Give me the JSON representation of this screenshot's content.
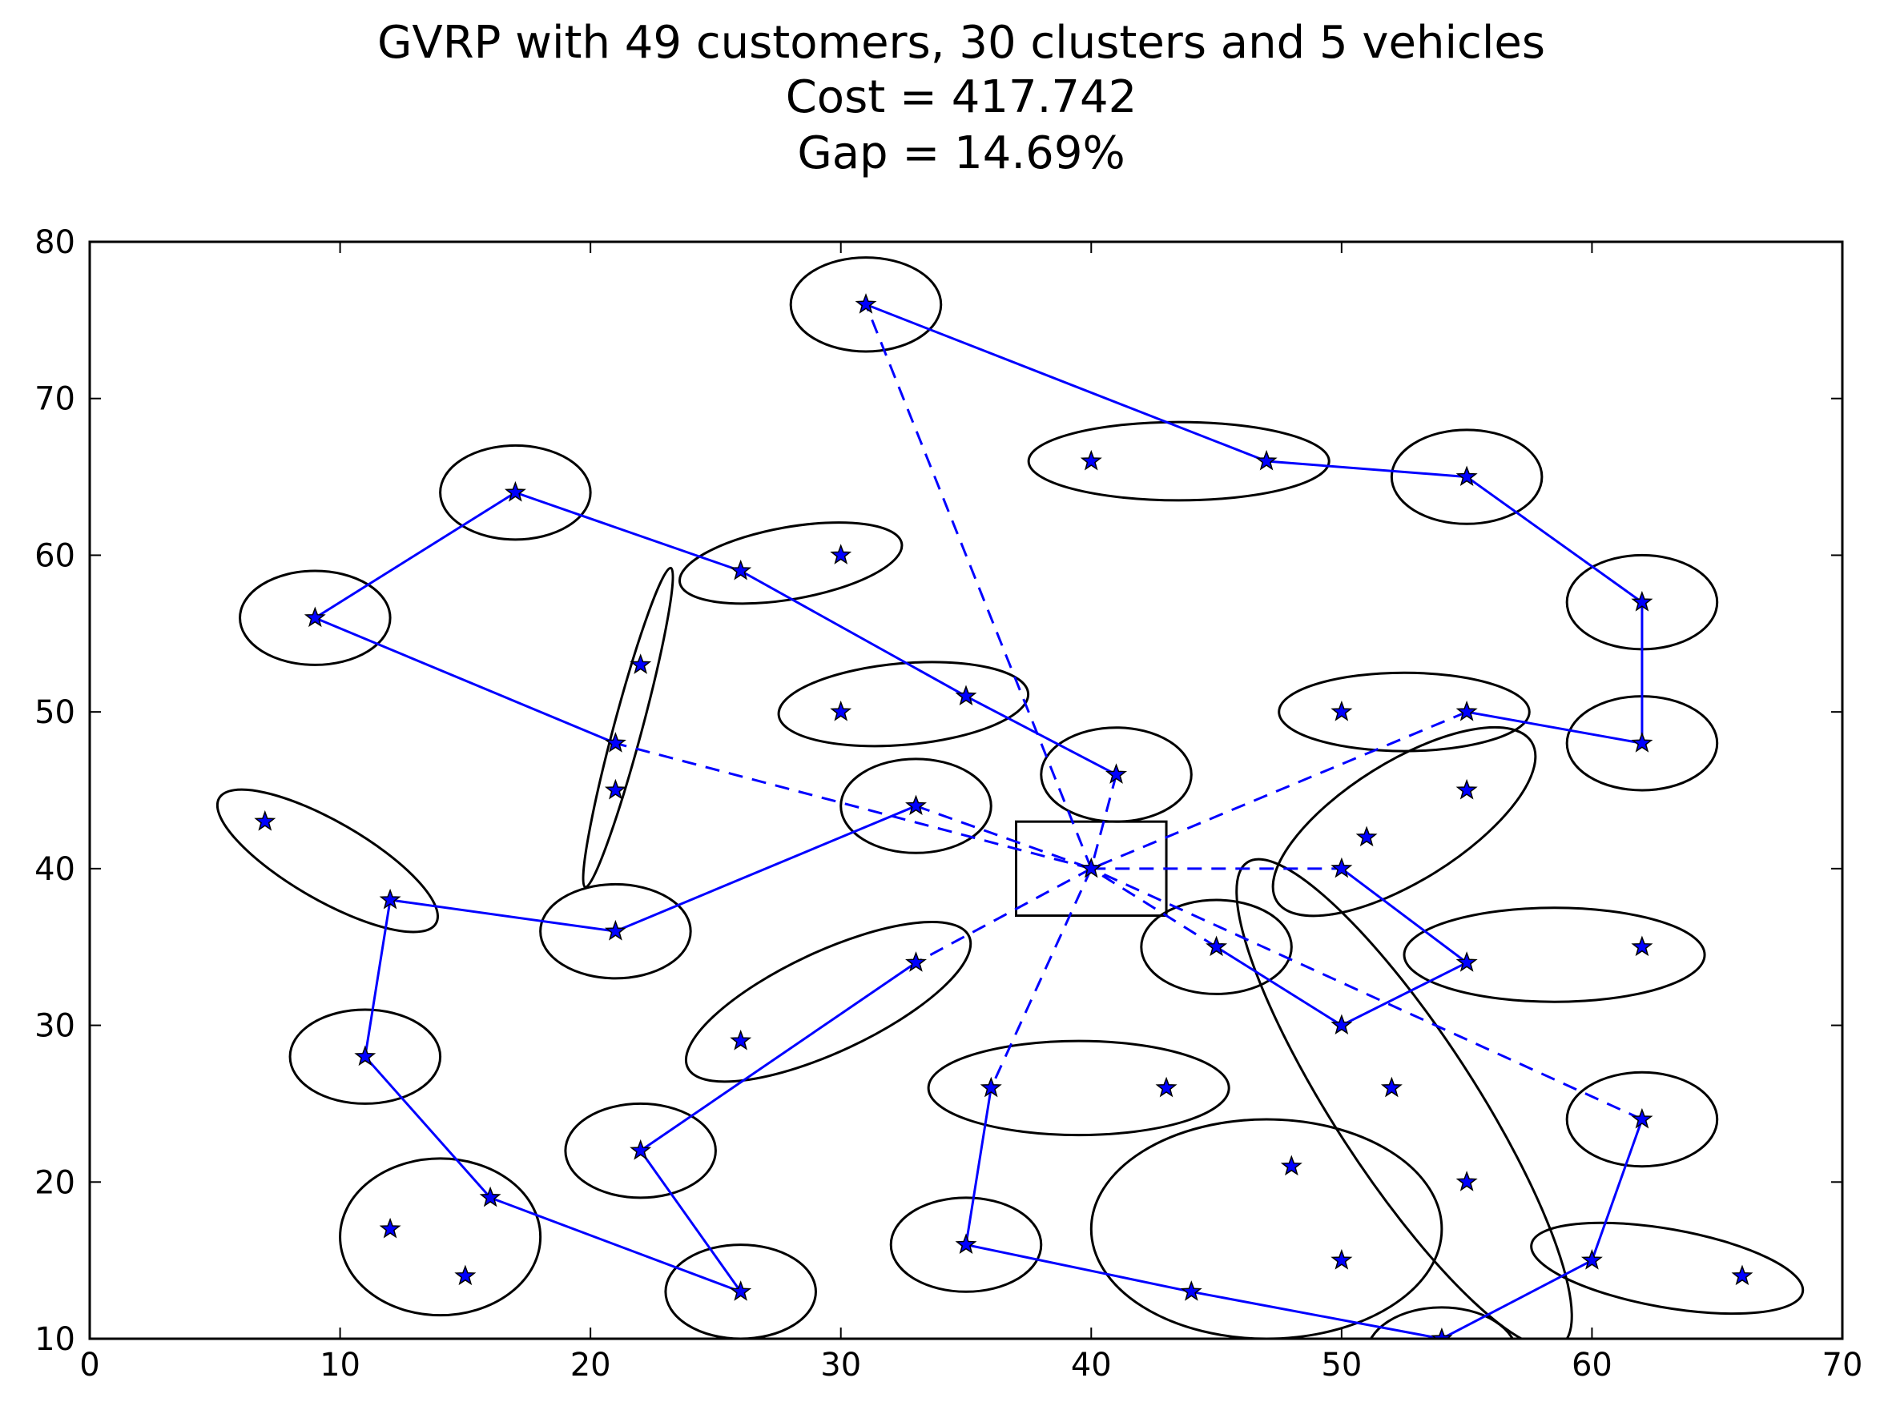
{
  "chart_data": {
    "type": "scatter",
    "title_lines": [
      "GVRP with 49 customers, 30 clusters and 5 vehicles",
      "Cost = 417.742",
      "Gap = 14.69%"
    ],
    "xlabel": "",
    "ylabel": "",
    "xlim": [
      0,
      70
    ],
    "ylim": [
      10,
      80
    ],
    "xticks": [
      0,
      10,
      20,
      30,
      40,
      50,
      60,
      70
    ],
    "yticks": [
      10,
      20,
      30,
      40,
      50,
      60,
      70,
      80
    ],
    "grid": false,
    "legend": "none",
    "colors": {
      "route": "#0000ff",
      "marker": "#0000ff",
      "cluster": "#000000"
    },
    "depot": {
      "x": 40,
      "y": 40,
      "box": {
        "xmin": 37,
        "xmax": 43,
        "ymin": 37,
        "ymax": 43
      }
    },
    "customers": [
      [
        31,
        76
      ],
      [
        40,
        66
      ],
      [
        47,
        66
      ],
      [
        55,
        65
      ],
      [
        17,
        64
      ],
      [
        30,
        60
      ],
      [
        26,
        59
      ],
      [
        9,
        56
      ],
      [
        62,
        57
      ],
      [
        22,
        53
      ],
      [
        30,
        50
      ],
      [
        35,
        51
      ],
      [
        50,
        50
      ],
      [
        55,
        50
      ],
      [
        21,
        48
      ],
      [
        62,
        48
      ],
      [
        41,
        46
      ],
      [
        21,
        45
      ],
      [
        55,
        45
      ],
      [
        7,
        43
      ],
      [
        33,
        44
      ],
      [
        51,
        42
      ],
      [
        50,
        40
      ],
      [
        12,
        38
      ],
      [
        21,
        36
      ],
      [
        45,
        35
      ],
      [
        62,
        35
      ],
      [
        55,
        34
      ],
      [
        33,
        34
      ],
      [
        50,
        30
      ],
      [
        26,
        29
      ],
      [
        11,
        28
      ],
      [
        36,
        26
      ],
      [
        43,
        26
      ],
      [
        52,
        26
      ],
      [
        62,
        24
      ],
      [
        22,
        22
      ],
      [
        48,
        21
      ],
      [
        55,
        20
      ],
      [
        16,
        19
      ],
      [
        12,
        17
      ],
      [
        35,
        16
      ],
      [
        50,
        15
      ],
      [
        60,
        15
      ],
      [
        15,
        14
      ],
      [
        66,
        14
      ],
      [
        26,
        13
      ],
      [
        44,
        13
      ],
      [
        54,
        10
      ]
    ],
    "clusters": [
      {
        "cx": 31,
        "cy": 76,
        "rx": 3.0,
        "ry": 3.0,
        "angle": 0
      },
      {
        "cx": 43.5,
        "cy": 66,
        "rx": 6.0,
        "ry": 2.5,
        "angle": 0
      },
      {
        "cx": 55,
        "cy": 65,
        "rx": 3.0,
        "ry": 3.0,
        "angle": 0
      },
      {
        "cx": 17,
        "cy": 64,
        "rx": 3.0,
        "ry": 3.0,
        "angle": 0
      },
      {
        "cx": 28,
        "cy": 59.5,
        "rx": 4.5,
        "ry": 2.3,
        "angle": 10
      },
      {
        "cx": 9,
        "cy": 56,
        "rx": 3.0,
        "ry": 3.0,
        "angle": 0
      },
      {
        "cx": 62,
        "cy": 57,
        "rx": 3.0,
        "ry": 3.0,
        "angle": 0
      },
      {
        "cx": 21.5,
        "cy": 49,
        "rx": 6.6,
        "ry": 0.9,
        "angle": 75
      },
      {
        "cx": 32.5,
        "cy": 50.5,
        "rx": 5.0,
        "ry": 2.6,
        "angle": 5
      },
      {
        "cx": 52.5,
        "cy": 50,
        "rx": 5.0,
        "ry": 2.5,
        "angle": 0
      },
      {
        "cx": 62,
        "cy": 48,
        "rx": 3.0,
        "ry": 3.0,
        "angle": 0
      },
      {
        "cx": 41,
        "cy": 46,
        "rx": 3.0,
        "ry": 3.0,
        "angle": 0
      },
      {
        "cx": 52.5,
        "cy": 43,
        "rx": 6.0,
        "ry": 3.8,
        "angle": 32
      },
      {
        "cx": 9.5,
        "cy": 40.5,
        "rx": 5.0,
        "ry": 2.5,
        "angle": -30
      },
      {
        "cx": 33,
        "cy": 44,
        "rx": 3.0,
        "ry": 3.0,
        "angle": 0
      },
      {
        "cx": 21,
        "cy": 36,
        "rx": 3.0,
        "ry": 3.0,
        "angle": 0
      },
      {
        "cx": 45,
        "cy": 35,
        "rx": 3.0,
        "ry": 3.0,
        "angle": 0
      },
      {
        "cx": 58.5,
        "cy": 34.5,
        "rx": 6.0,
        "ry": 3.0,
        "angle": 0
      },
      {
        "cx": 29.5,
        "cy": 31.5,
        "rx": 6.2,
        "ry": 3.2,
        "angle": 25
      },
      {
        "cx": 52.5,
        "cy": 25,
        "rx": 11.5,
        "ry": 4.5,
        "angle": -57
      },
      {
        "cx": 11,
        "cy": 28,
        "rx": 3.0,
        "ry": 3.0,
        "angle": 0
      },
      {
        "cx": 39.5,
        "cy": 26,
        "rx": 6.0,
        "ry": 3.0,
        "angle": 0
      },
      {
        "cx": 62,
        "cy": 24,
        "rx": 3.0,
        "ry": 3.0,
        "angle": 0
      },
      {
        "cx": 22,
        "cy": 22,
        "rx": 3.0,
        "ry": 3.0,
        "angle": 0
      },
      {
        "cx": 14,
        "cy": 16.5,
        "rx": 4.0,
        "ry": 5.0,
        "angle": 0
      },
      {
        "cx": 47,
        "cy": 17,
        "rx": 7.0,
        "ry": 7.0,
        "angle": 0
      },
      {
        "cx": 35,
        "cy": 16,
        "rx": 3.0,
        "ry": 3.0,
        "angle": 0
      },
      {
        "cx": 63,
        "cy": 14.5,
        "rx": 5.5,
        "ry": 2.5,
        "angle": -10
      },
      {
        "cx": 26,
        "cy": 13,
        "rx": 3.0,
        "ry": 3.0,
        "angle": 0
      },
      {
        "cx": 54,
        "cy": 9,
        "rx": 3.0,
        "ry": 3.0,
        "angle": 0
      }
    ],
    "routes": [
      {
        "depot_legs": [
          [
            40,
            40
          ],
          [
            31,
            76
          ]
        ],
        "path": [
          [
            31,
            76
          ],
          [
            47,
            66
          ],
          [
            55,
            65
          ],
          [
            62,
            57
          ],
          [
            62,
            48
          ],
          [
            55,
            50
          ]
        ],
        "return_leg": [
          [
            55,
            50
          ],
          [
            40,
            40
          ]
        ]
      },
      {
        "depot_legs": [
          [
            40,
            40
          ],
          [
            21,
            48
          ]
        ],
        "path": [
          [
            21,
            48
          ],
          [
            9,
            56
          ],
          [
            17,
            64
          ],
          [
            26,
            59
          ],
          [
            35,
            51
          ],
          [
            41,
            46
          ]
        ],
        "return_leg": [
          [
            41,
            46
          ],
          [
            40,
            40
          ]
        ]
      },
      {
        "depot_legs": [
          [
            40,
            40
          ],
          [
            33,
            34
          ]
        ],
        "path": [
          [
            33,
            34
          ],
          [
            22,
            22
          ],
          [
            26,
            13
          ],
          [
            16,
            19
          ],
          [
            11,
            28
          ],
          [
            12,
            38
          ],
          [
            21,
            36
          ],
          [
            33,
            44
          ]
        ],
        "return_leg": [
          [
            33,
            44
          ],
          [
            40,
            40
          ]
        ]
      },
      {
        "depot_legs": [
          [
            40,
            40
          ],
          [
            50,
            40
          ]
        ],
        "path": [
          [
            50,
            40
          ],
          [
            55,
            34
          ],
          [
            50,
            30
          ],
          [
            45,
            35
          ]
        ],
        "return_leg": [
          [
            45,
            35
          ],
          [
            40,
            40
          ]
        ]
      },
      {
        "depot_legs": [
          [
            40,
            40
          ],
          [
            36,
            26
          ]
        ],
        "path": [
          [
            36,
            26
          ],
          [
            35,
            16
          ],
          [
            44,
            13
          ],
          [
            54,
            10
          ],
          [
            60,
            15
          ],
          [
            62,
            24
          ]
        ],
        "return_leg": [
          [
            62,
            24
          ],
          [
            40,
            40
          ]
        ]
      }
    ]
  }
}
